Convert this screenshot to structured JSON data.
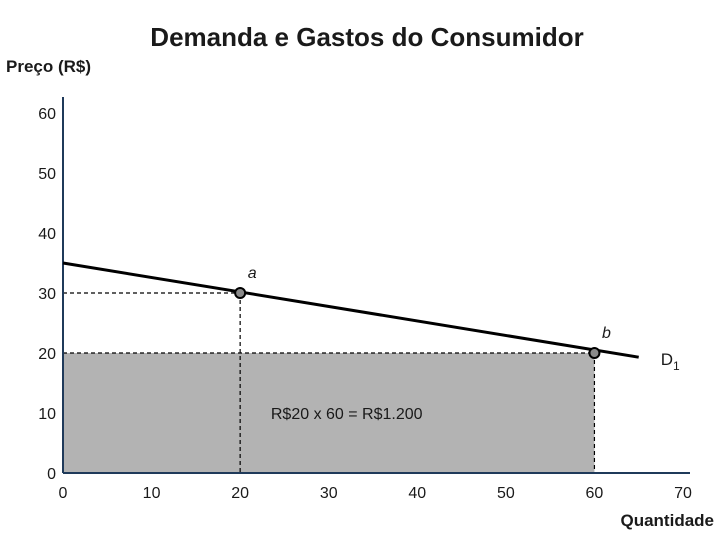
{
  "chart_data": {
    "type": "line",
    "title": "Demanda e Gastos do Consumidor",
    "xlabel": "Quantidade",
    "ylabel": "Preço (R$)",
    "xlim": [
      0,
      70
    ],
    "ylim": [
      0,
      60
    ],
    "x_ticks": [
      0,
      10,
      20,
      30,
      40,
      50,
      60,
      70
    ],
    "y_ticks": [
      0,
      10,
      20,
      30,
      40,
      50,
      60
    ],
    "grid": false,
    "series": [
      {
        "name": "D",
        "name_subscript": "1",
        "color": "#000000",
        "x": [
          0,
          65
        ],
        "y": [
          35,
          19.3
        ]
      }
    ],
    "points": [
      {
        "label": "a",
        "x": 20,
        "y": 30
      },
      {
        "label": "b",
        "x": 60,
        "y": 20
      }
    ],
    "shaded_area": {
      "x": [
        0,
        60
      ],
      "y": [
        0,
        20
      ],
      "color": "#b3b3b3",
      "label": "R$20 x 60 = R$1.200"
    },
    "axis_color": "#1f3a5a"
  }
}
